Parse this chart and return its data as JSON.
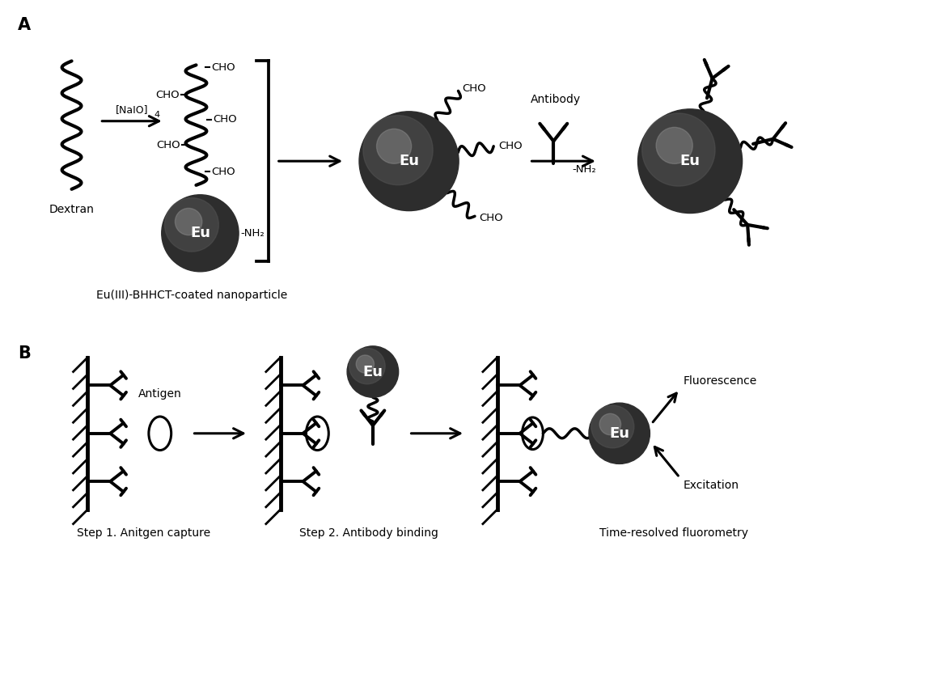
{
  "bg_color": "#ffffff",
  "text_color": "#000000",
  "label_A": "A",
  "label_B": "B",
  "label_dextran": "Dextran",
  "label_naio": "[NaIO]",
  "label_naio_sub": "4",
  "label_eu_bhhct": "Eu(III)-BHHCT-coated nanoparticle",
  "label_antibody": "Antibody",
  "label_step1": "Step 1. Anitgen capture",
  "label_step2": "Step 2. Antibody binding",
  "label_step3": "Time-resolved fluorometry",
  "label_fluorescence": "Fluorescence",
  "label_excitation": "Excitation",
  "label_antigen": "Antigen"
}
